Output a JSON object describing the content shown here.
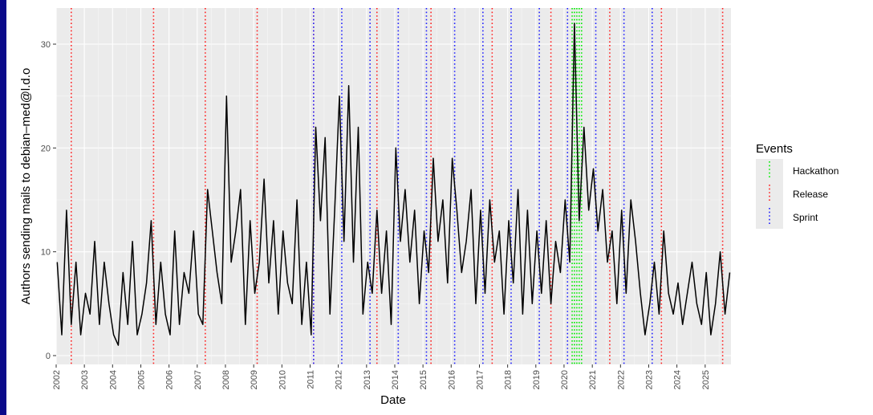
{
  "chart_data": {
    "type": "line",
    "xlabel": "Date",
    "ylabel": "Authors sending mails to debian–med@l.d.o",
    "ylim": [
      0,
      32
    ],
    "xlim": [
      "2002-01-01",
      "2025-12-01"
    ],
    "y_ticks": [
      0,
      10,
      20,
      30
    ],
    "x_ticks": [
      "2002",
      "2003",
      "2004",
      "2005",
      "2006",
      "2007",
      "2008",
      "2009",
      "2010",
      "2011",
      "2012",
      "2013",
      "2014",
      "2015",
      "2016",
      "2017",
      "2018",
      "2019",
      "2020",
      "2021",
      "2022",
      "2023",
      "2024",
      "2025"
    ],
    "grid": true,
    "legend": {
      "title": "Events",
      "placement": "right",
      "entries": [
        {
          "name": "Hackathon",
          "color": "#00ee00"
        },
        {
          "name": "Release",
          "color": "#ff2020"
        },
        {
          "name": "Sprint",
          "color": "#2020ff"
        }
      ]
    },
    "series": [
      {
        "color": "#000000",
        "x": [
          "2002-01",
          "2002-03",
          "2002-05",
          "2002-07",
          "2002-09",
          "2002-11",
          "2003-01",
          "2003-03",
          "2003-05",
          "2003-07",
          "2003-09",
          "2003-11",
          "2004-01",
          "2004-03",
          "2004-05",
          "2004-07",
          "2004-09",
          "2004-11",
          "2005-01",
          "2005-03",
          "2005-05",
          "2005-07",
          "2005-09",
          "2005-11",
          "2006-01",
          "2006-03",
          "2006-05",
          "2006-07",
          "2006-09",
          "2006-11",
          "2007-01",
          "2007-03",
          "2007-05",
          "2007-07",
          "2007-09",
          "2007-11",
          "2008-01",
          "2008-03",
          "2008-05",
          "2008-07",
          "2008-09",
          "2008-11",
          "2009-01",
          "2009-03",
          "2009-05",
          "2009-07",
          "2009-09",
          "2009-11",
          "2010-01",
          "2010-03",
          "2010-05",
          "2010-07",
          "2010-09",
          "2010-11",
          "2011-01",
          "2011-03",
          "2011-05",
          "2011-07",
          "2011-09",
          "2011-11",
          "2012-01",
          "2012-03",
          "2012-05",
          "2012-07",
          "2012-09",
          "2012-11",
          "2013-01",
          "2013-03",
          "2013-05",
          "2013-07",
          "2013-09",
          "2013-11",
          "2014-01",
          "2014-03",
          "2014-05",
          "2014-07",
          "2014-09",
          "2014-11",
          "2015-01",
          "2015-03",
          "2015-05",
          "2015-07",
          "2015-09",
          "2015-11",
          "2016-01",
          "2016-03",
          "2016-05",
          "2016-07",
          "2016-09",
          "2016-11",
          "2017-01",
          "2017-03",
          "2017-05",
          "2017-07",
          "2017-09",
          "2017-11",
          "2018-01",
          "2018-03",
          "2018-05",
          "2018-07",
          "2018-09",
          "2018-11",
          "2019-01",
          "2019-03",
          "2019-05",
          "2019-07",
          "2019-09",
          "2019-11",
          "2020-01",
          "2020-03",
          "2020-05",
          "2020-07",
          "2020-09",
          "2020-11",
          "2021-01",
          "2021-03",
          "2021-05",
          "2021-07",
          "2021-09",
          "2021-11",
          "2022-01",
          "2022-03",
          "2022-05",
          "2022-07",
          "2022-09",
          "2022-11",
          "2023-01",
          "2023-03",
          "2023-05",
          "2023-07",
          "2023-09",
          "2023-11",
          "2024-01",
          "2024-03",
          "2024-05",
          "2024-07",
          "2024-09",
          "2024-11",
          "2025-01",
          "2025-03",
          "2025-05",
          "2025-07",
          "2025-09",
          "2025-11"
        ],
        "values": [
          9,
          2,
          14,
          3,
          9,
          2,
          6,
          4,
          11,
          3,
          9,
          5,
          2,
          1,
          8,
          3,
          11,
          2,
          4,
          7,
          13,
          3,
          9,
          4,
          2,
          12,
          3,
          8,
          6,
          12,
          4,
          3,
          16,
          12,
          8,
          5,
          25,
          9,
          12,
          16,
          3,
          13,
          6,
          9,
          17,
          7,
          13,
          4,
          12,
          7,
          5,
          15,
          3,
          9,
          2,
          22,
          13,
          21,
          4,
          14,
          25,
          11,
          26,
          9,
          22,
          4,
          9,
          6,
          14,
          6,
          12,
          3,
          20,
          11,
          16,
          9,
          14,
          5,
          12,
          8,
          19,
          11,
          15,
          7,
          19,
          14,
          8,
          11,
          16,
          5,
          14,
          6,
          15,
          9,
          12,
          4,
          13,
          7,
          16,
          4,
          14,
          5,
          12,
          6,
          13,
          5,
          11,
          8,
          15,
          9,
          32,
          13,
          22,
          14,
          18,
          12,
          16,
          9,
          12,
          5,
          14,
          6,
          15,
          11,
          6,
          2,
          5,
          9,
          4,
          12,
          6,
          4,
          7,
          3,
          6,
          9,
          5,
          3,
          8,
          2,
          5,
          10,
          4,
          8
        ]
      }
    ],
    "events": {
      "release": [
        "2002-07",
        "2005-06",
        "2007-04",
        "2009-02",
        "2011-02",
        "2013-05",
        "2015-04",
        "2017-06",
        "2019-07",
        "2021-08",
        "2023-06",
        "2025-08"
      ],
      "sprint": [
        "2011-02",
        "2012-02",
        "2013-02",
        "2014-02",
        "2015-02",
        "2016-02",
        "2017-02",
        "2018-02",
        "2019-02",
        "2020-02",
        "2021-02",
        "2022-02",
        "2023-02"
      ],
      "hackathon": [
        "2020-04",
        "2020-05",
        "2020-06",
        "2020-07",
        "2020-08"
      ]
    }
  }
}
